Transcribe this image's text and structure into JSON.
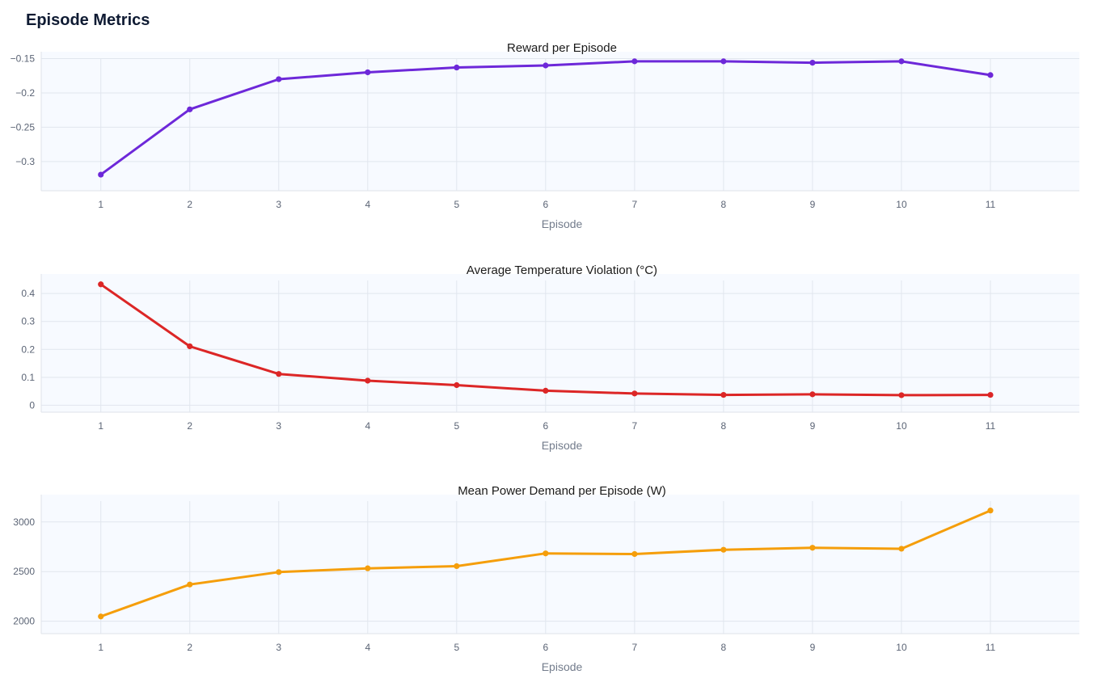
{
  "page": {
    "title": "Episode Metrics"
  },
  "chart_data": [
    {
      "type": "line",
      "title": "Reward per Episode",
      "xlabel": "Episode",
      "ylabel": "",
      "x": [
        1,
        2,
        3,
        4,
        5,
        6,
        7,
        8,
        9,
        10,
        11
      ],
      "y_ticks": [
        -0.15,
        -0.2,
        -0.25,
        -0.3
      ],
      "y_tick_labels": [
        "−0.15",
        "−0.2",
        "−0.25",
        "−0.3"
      ],
      "ylim": [
        -0.3425,
        -0.14
      ],
      "xlim": [
        0.33,
        12.0
      ],
      "grid": true,
      "color": "#6d28d9",
      "series": [
        {
          "values": [
            -0.319,
            -0.224,
            -0.18,
            -0.17,
            -0.163,
            -0.16,
            -0.154,
            -0.154,
            -0.156,
            -0.154,
            -0.174
          ]
        }
      ]
    },
    {
      "type": "line",
      "title": "Average Temperature Violation (°C)",
      "xlabel": "Episode",
      "ylabel": "",
      "x": [
        1,
        2,
        3,
        4,
        5,
        6,
        7,
        8,
        9,
        10,
        11
      ],
      "y_ticks": [
        0,
        0.1,
        0.2,
        0.3,
        0.4
      ],
      "y_tick_labels": [
        "0",
        "0.1",
        "0.2",
        "0.3",
        "0.4"
      ],
      "ylim": [
        -0.025,
        0.47
      ],
      "xlim": [
        0.33,
        12.0
      ],
      "grid": true,
      "color": "#dc2626",
      "series": [
        {
          "values": [
            0.433,
            0.211,
            0.112,
            0.088,
            0.072,
            0.052,
            0.042,
            0.037,
            0.039,
            0.036,
            0.037
          ]
        }
      ]
    },
    {
      "type": "line",
      "title": "Mean Power Demand per Episode (W)",
      "xlabel": "Episode",
      "ylabel": "",
      "x": [
        1,
        2,
        3,
        4,
        5,
        6,
        7,
        8,
        9,
        10,
        11
      ],
      "y_ticks": [
        2000,
        2500,
        3000
      ],
      "y_tick_labels": [
        "2000",
        "2500",
        "3000"
      ],
      "ylim": [
        1875,
        3275
      ],
      "xlim": [
        0.33,
        12.0
      ],
      "grid": true,
      "color": "#f59e0b",
      "series": [
        {
          "values": [
            2048,
            2370,
            2495,
            2533,
            2555,
            2683,
            2677,
            2720,
            2740,
            2730,
            3115
          ]
        }
      ]
    }
  ]
}
